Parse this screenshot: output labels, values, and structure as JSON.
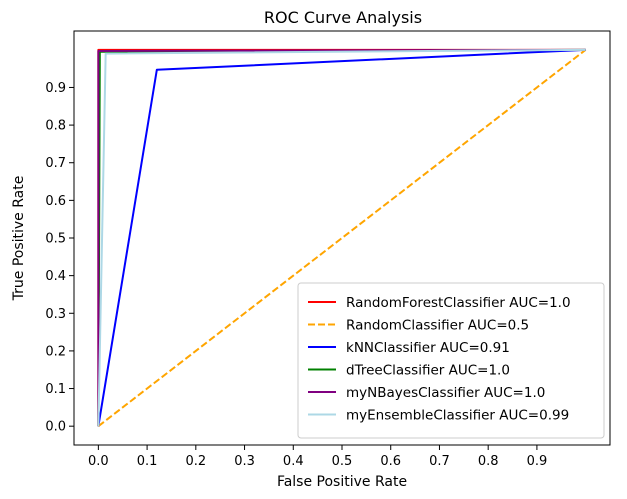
{
  "chart_data": {
    "type": "line",
    "title": "ROC Curve Analysis",
    "xlabel": "False Positive Rate",
    "ylabel": "True Positive Rate",
    "xlim": [
      -0.05,
      1.05
    ],
    "ylim": [
      -0.05,
      1.05
    ],
    "xticks": [
      0.0,
      0.1,
      0.2,
      0.3,
      0.4,
      0.5,
      0.6,
      0.7,
      0.8,
      0.9
    ],
    "yticks": [
      0.0,
      0.1,
      0.2,
      0.3,
      0.4,
      0.5,
      0.6,
      0.7,
      0.8,
      0.9
    ],
    "xtick_labels": [
      "0.0",
      "0.1",
      "0.2",
      "0.3",
      "0.4",
      "0.5",
      "0.6",
      "0.7",
      "0.8",
      "0.9"
    ],
    "ytick_labels": [
      "0.0",
      "0.1",
      "0.2",
      "0.3",
      "0.4",
      "0.5",
      "0.6",
      "0.7",
      "0.8",
      "0.9"
    ],
    "grid": false,
    "legend_position": "lower-right",
    "series": [
      {
        "name": "RandomForestClassifier AUC=1.0",
        "color": "#ff0000",
        "dash": "solid",
        "x": [
          0.0,
          0.0,
          1.0
        ],
        "y": [
          0.0,
          1.0,
          1.0
        ]
      },
      {
        "name": "RandomClassifier AUC=0.5",
        "color": "#ffa500",
        "dash": "dashed",
        "x": [
          0.0,
          1.0
        ],
        "y": [
          0.0,
          1.0
        ]
      },
      {
        "name": "kNNClassifier AUC=0.91",
        "color": "#0000ff",
        "dash": "solid",
        "x": [
          0.0,
          0.12,
          1.0
        ],
        "y": [
          0.0,
          0.947,
          1.0
        ]
      },
      {
        "name": "dTreeClassifier AUC=1.0",
        "color": "#008000",
        "dash": "solid",
        "x": [
          0.0,
          0.003,
          1.0
        ],
        "y": [
          0.0,
          0.995,
          1.0
        ]
      },
      {
        "name": "myNBayesClassifier AUC=1.0",
        "color": "#800080",
        "dash": "solid",
        "x": [
          0.0,
          0.0,
          1.0
        ],
        "y": [
          0.0,
          0.997,
          1.0
        ]
      },
      {
        "name": "myEnsembleClassifier AUC=0.99",
        "color": "#add8e6",
        "dash": "solid",
        "x": [
          0.0,
          0.015,
          1.0
        ],
        "y": [
          0.0,
          0.99,
          1.0
        ]
      }
    ]
  }
}
